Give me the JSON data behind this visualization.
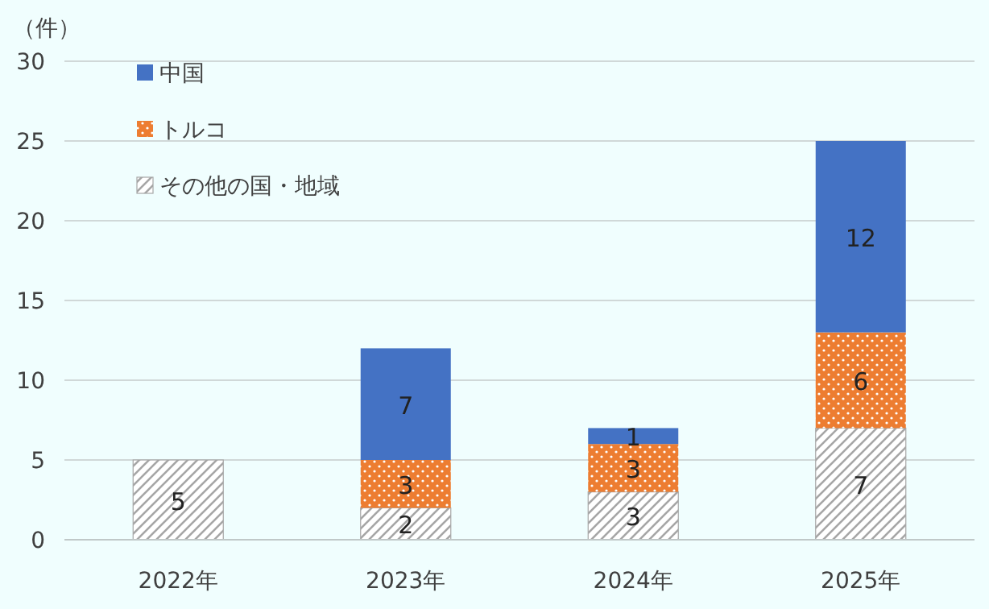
{
  "chart_data": {
    "type": "bar",
    "ylabel": "（件）",
    "categories": [
      "2022年",
      "2023年",
      "2024年",
      "2025年"
    ],
    "series": [
      {
        "name": "その他の国・地域",
        "color": "#a6a6a6",
        "values": [
          5,
          2,
          3,
          7
        ]
      },
      {
        "name": "トルコ",
        "color": "#ed7d31",
        "values": [
          null,
          3,
          3,
          6
        ]
      },
      {
        "name": "中国",
        "color": "#4472c4",
        "values": [
          null,
          7,
          1,
          12
        ]
      }
    ],
    "stacked": true,
    "ylim": [
      0,
      30
    ],
    "yticks": [
      0,
      5,
      10,
      15,
      20,
      25,
      30
    ],
    "grid": "y",
    "legend": "top left",
    "data_labels": true
  }
}
